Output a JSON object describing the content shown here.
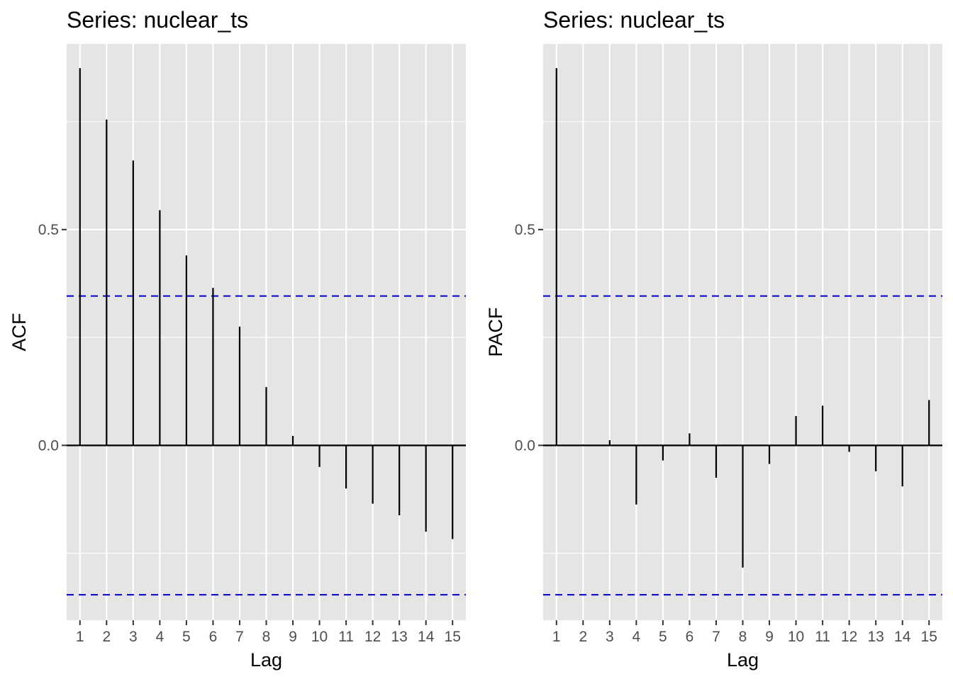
{
  "chart_data": [
    {
      "type": "bar",
      "title": "Series: nuclear_ts",
      "xlabel": "Lag",
      "ylabel": "ACF",
      "categories": [
        "1",
        "2",
        "3",
        "4",
        "5",
        "6",
        "7",
        "8",
        "9",
        "10",
        "11",
        "12",
        "13",
        "14",
        "15"
      ],
      "values": [
        0.874,
        0.755,
        0.66,
        0.545,
        0.44,
        0.365,
        0.275,
        0.135,
        0.022,
        -0.05,
        -0.1,
        -0.135,
        -0.162,
        -0.2,
        -0.217
      ],
      "ci": [
        0.346,
        -0.346
      ],
      "ylim": [
        -0.405,
        0.93
      ],
      "y_ticks": [
        0.0,
        0.5
      ],
      "y_tick_labels": [
        "0.0",
        "0.5"
      ],
      "grid": true
    },
    {
      "type": "bar",
      "title": "Series: nuclear_ts",
      "xlabel": "Lag",
      "ylabel": "PACF",
      "categories": [
        "1",
        "2",
        "3",
        "4",
        "5",
        "6",
        "7",
        "8",
        "9",
        "10",
        "11",
        "12",
        "13",
        "14",
        "15"
      ],
      "values": [
        0.874,
        0.002,
        0.012,
        -0.137,
        -0.035,
        0.028,
        -0.075,
        -0.283,
        -0.043,
        0.068,
        0.092,
        -0.015,
        -0.06,
        -0.095,
        0.105
      ],
      "ci": [
        0.346,
        -0.346
      ],
      "ylim": [
        -0.405,
        0.93
      ],
      "y_ticks": [
        0.0,
        0.5
      ],
      "y_tick_labels": [
        "0.0",
        "0.5"
      ],
      "grid": true
    }
  ],
  "colors": {
    "panel_bg": "#e5e5e5",
    "grid": "#ffffff",
    "bar": "#000000",
    "ci_line": "#0000cc",
    "text": "#000000",
    "tick_text": "#4d4d4d"
  }
}
